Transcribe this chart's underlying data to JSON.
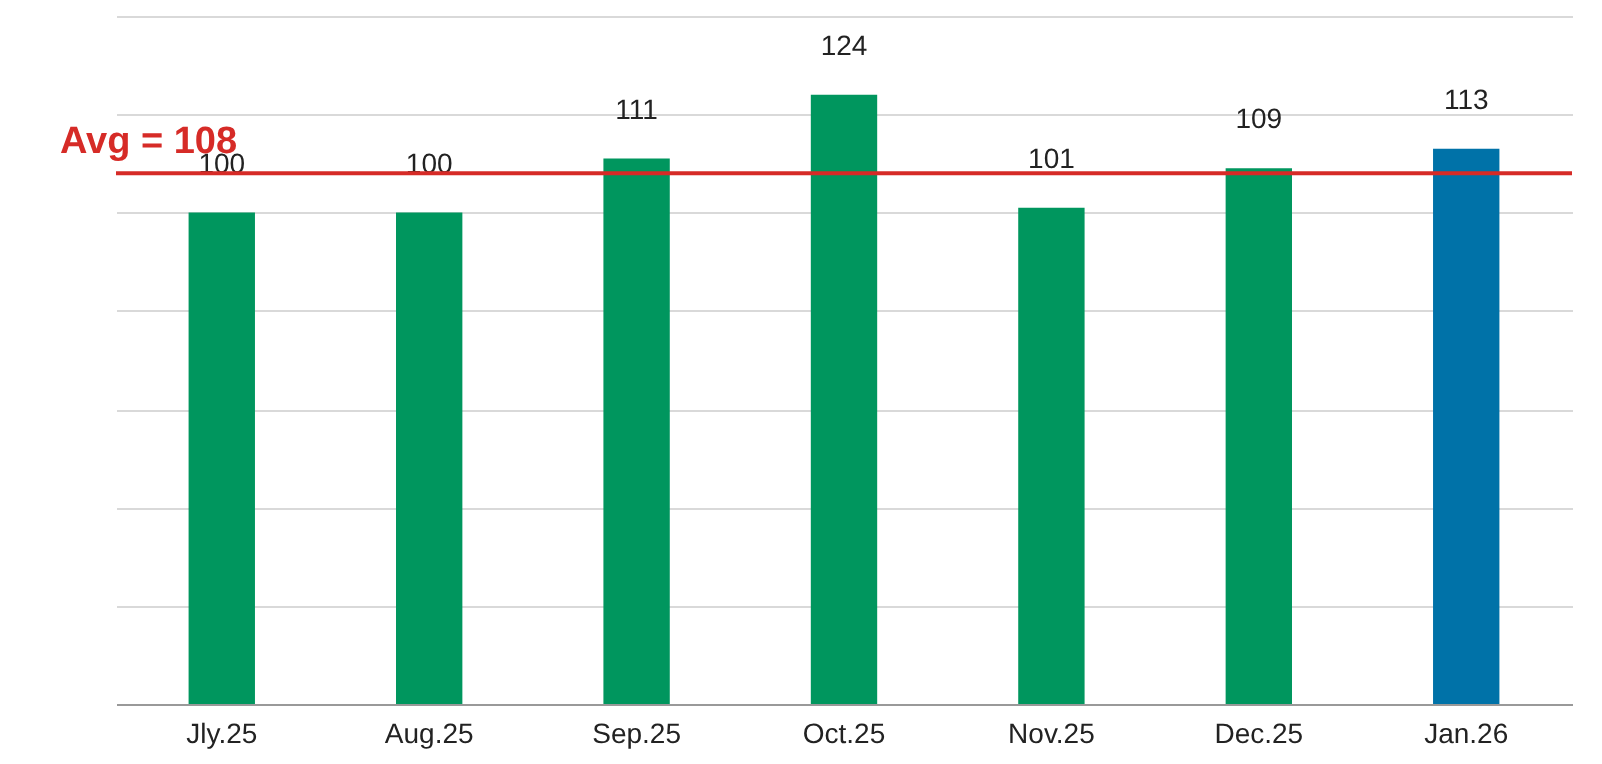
{
  "chart_data": {
    "type": "bar",
    "categories": [
      "Jly.25",
      "Aug.25",
      "Sep.25",
      "Oct.25",
      "Nov.25",
      "Dec.25",
      "Jan.26"
    ],
    "values": [
      100,
      100,
      111,
      124,
      101,
      109,
      113
    ],
    "colors": [
      "#00965e",
      "#00965e",
      "#00965e",
      "#00965e",
      "#00965e",
      "#00965e",
      "#0072a8"
    ],
    "data_labels": true,
    "ylim": [
      0,
      140
    ],
    "yticks": [
      {
        "value": 0,
        "label": null
      },
      {
        "value": 20,
        "label": null
      },
      {
        "value": 40,
        "label": null
      },
      {
        "value": 60,
        "label": null
      },
      {
        "value": 80,
        "label": null
      },
      {
        "value": 100,
        "label": null
      },
      {
        "value": 120,
        "label": null
      },
      {
        "value": 140,
        "label": null
      }
    ],
    "tick_labels": "x",
    "grid": "y",
    "ref_lines": [
      {
        "axis": "y",
        "value": 108,
        "label": "Avg = 108",
        "color": "#d62b27"
      }
    ]
  }
}
